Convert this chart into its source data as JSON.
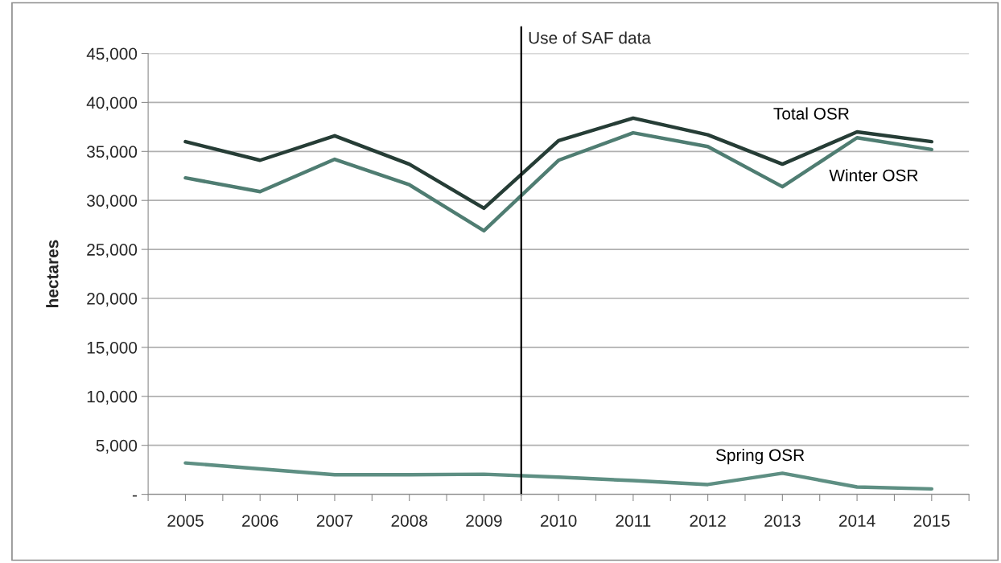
{
  "chart_data": {
    "type": "line",
    "ylabel": "hectares",
    "x": [
      2005,
      2006,
      2007,
      2008,
      2009,
      2010,
      2011,
      2012,
      2013,
      2014,
      2015
    ],
    "series": [
      {
        "name": "Total OSR",
        "color": "#263d36",
        "values": [
          36000,
          34100,
          36600,
          33700,
          29200,
          36100,
          38400,
          36700,
          33700,
          37000,
          36000
        ]
      },
      {
        "name": "Winter OSR",
        "color": "#4f7d72",
        "values": [
          32300,
          30900,
          34200,
          31600,
          26900,
          34100,
          36900,
          35500,
          31400,
          36400,
          35200
        ]
      },
      {
        "name": "Spring OSR",
        "color": "#5e8f83",
        "values": [
          3200,
          2600,
          2000,
          2000,
          2050,
          1750,
          1400,
          1000,
          2150,
          750,
          550
        ]
      }
    ],
    "xlim": [
      2004.5,
      2015.5
    ],
    "xticks": [
      {
        "value": 2004.5,
        "label": null
      },
      2005,
      {
        "value": 2005.5,
        "label": null
      },
      2006,
      {
        "value": 2006.5,
        "label": null
      },
      2007,
      {
        "value": 2007.5,
        "label": null
      },
      2008,
      {
        "value": 2008.5,
        "label": null
      },
      2009,
      {
        "value": 2009.5,
        "label": null
      },
      2010,
      {
        "value": 2010.5,
        "label": null
      },
      2011,
      {
        "value": 2011.5,
        "label": null
      },
      2012,
      {
        "value": 2012.5,
        "label": null
      },
      2013,
      {
        "value": 2013.5,
        "label": null
      },
      2014,
      {
        "value": 2014.5,
        "label": null
      },
      2015,
      {
        "value": 2015.5,
        "label": null
      }
    ],
    "ylim": [
      0,
      45000
    ],
    "yticks": [
      {
        "value": 0,
        "label": "-"
      },
      {
        "value": 5000,
        "label": "5,000"
      },
      {
        "value": 10000,
        "label": "10,000"
      },
      {
        "value": 15000,
        "label": "15,000"
      },
      {
        "value": 20000,
        "label": "20,000"
      },
      {
        "value": 25000,
        "label": "25,000"
      },
      {
        "value": 30000,
        "label": "30,000"
      },
      {
        "value": 35000,
        "label": "35,000"
      },
      {
        "value": 40000,
        "label": "40,000"
      },
      {
        "value": 45000,
        "label": "45,000"
      }
    ],
    "ref_lines": [
      {
        "axis": "x",
        "value": 2009.5,
        "label": "Use of SAF data",
        "color": "#000000"
      }
    ],
    "grid": "y",
    "legend": false,
    "marker": "none",
    "line_style": "solid"
  }
}
